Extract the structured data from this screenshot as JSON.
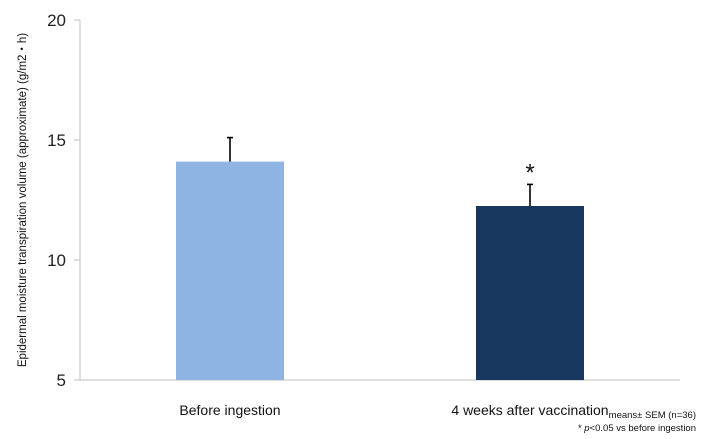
{
  "chart_data": {
    "type": "bar",
    "title": "",
    "xlabel": "",
    "ylabel": "Epidermal moisture transpiration volume (approximate) (g/m2・h)",
    "ylim": [
      5,
      20
    ],
    "yticks": [
      5,
      10,
      15,
      20
    ],
    "ytick_labels": [
      "5",
      "10",
      "15",
      "20"
    ],
    "categories": [
      "Before ingestion",
      "4 weeks after vaccination"
    ],
    "values": [
      14.1,
      12.25
    ],
    "errors": [
      1.0,
      0.9
    ],
    "colors": [
      "#8eb4e3",
      "#17375e"
    ],
    "grid": false,
    "significance": [
      {
        "category_index": 1,
        "label": "*"
      }
    ],
    "notes": {
      "line1": "means± SEM (n=36)",
      "line2_prefix": "* ",
      "line2_italic": "p",
      "line2_suffix": "<0.05 vs before ingestion"
    }
  }
}
